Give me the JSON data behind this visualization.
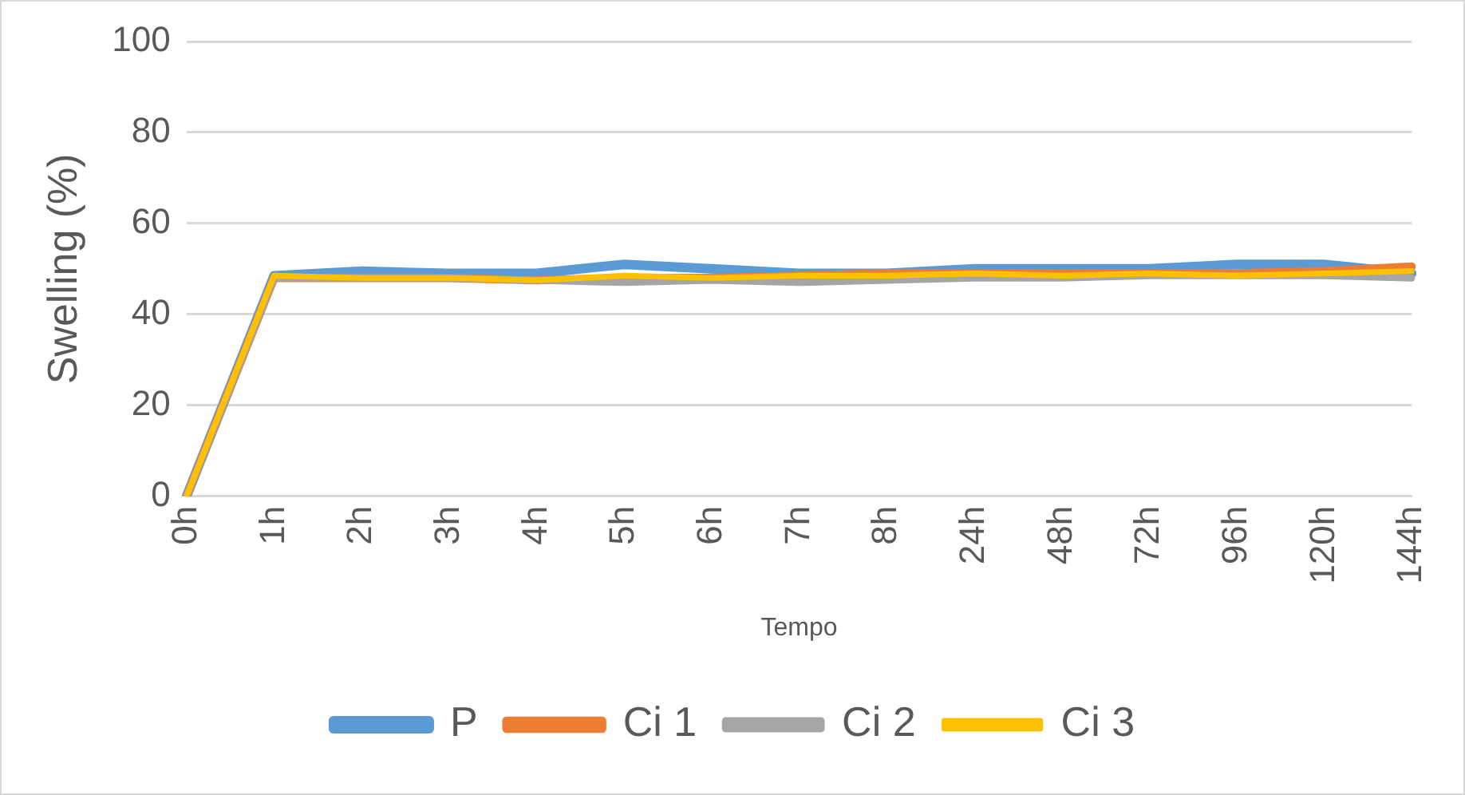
{
  "chart_data": {
    "type": "line",
    "xlabel": "Tempo",
    "ylabel": "Swelling (%)",
    "categories": [
      "0h",
      "1h",
      "2h",
      "3h",
      "4h",
      "5h",
      "6h",
      "7h",
      "8h",
      "24h",
      "48h",
      "72h",
      "96h",
      "120h",
      "144h"
    ],
    "series": [
      {
        "name": "P",
        "color": "#5b9bd5",
        "values": [
          0,
          48.5,
          49.5,
          49,
          49,
          51,
          50,
          49,
          49,
          50,
          50,
          50,
          51,
          51,
          49
        ]
      },
      {
        "name": "Ci 1",
        "color": "#ed7d31",
        "values": [
          0,
          48,
          48,
          48,
          47.5,
          48,
          48,
          48.5,
          49,
          49,
          49,
          49,
          49,
          49.5,
          50.5
        ]
      },
      {
        "name": "Ci 2",
        "color": "#a5a5a5",
        "values": [
          0,
          48,
          48,
          48,
          47.5,
          47,
          47.5,
          47,
          47.5,
          48,
          48,
          48.5,
          48.5,
          48.5,
          48
        ]
      },
      {
        "name": "Ci 3",
        "color": "#ffc000",
        "values": [
          0,
          48.5,
          48,
          48,
          47.5,
          48.5,
          48,
          48.5,
          48.5,
          49,
          48.5,
          49,
          48.5,
          49,
          49.5
        ]
      }
    ],
    "ylim": [
      0,
      100
    ],
    "yticks": [
      0,
      20,
      40,
      60,
      80,
      100
    ],
    "grid": "y",
    "legend": "bottom",
    "marker": "none",
    "line_style": "solid"
  }
}
